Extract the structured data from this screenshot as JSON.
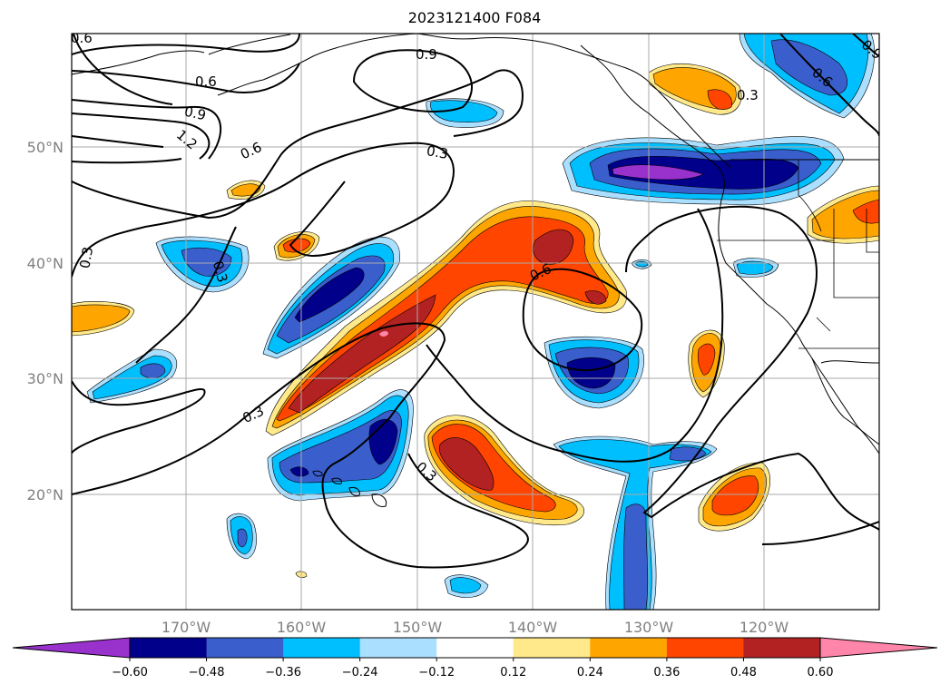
{
  "title": "2023121400 F084",
  "lon_labels": [
    "170°W",
    "160°W",
    "150°W",
    "140°W",
    "130°W",
    "120°W"
  ],
  "lat_labels": [
    "50°N",
    "40°N",
    "30°N",
    "20°N"
  ],
  "colorbar": {
    "ticks": [
      "−0.60",
      "−0.48",
      "−0.36",
      "−0.24",
      "−0.12",
      "0.12",
      "0.24",
      "0.36",
      "0.48",
      "0.60"
    ],
    "colors": [
      "#9932cc",
      "#00008b",
      "#3a5fcd",
      "#00bfff",
      "#aadfff",
      "#ffffff",
      "#ffe98a",
      "#ffa500",
      "#ff4500",
      "#b22222",
      "#ff85aa"
    ]
  },
  "contour_labels": [
    "0.6",
    "0.6",
    "0.9",
    "0.9",
    "1.2",
    "0.6",
    "0.3",
    "0.3",
    "0.3",
    "0.6",
    "0.3",
    "0.3",
    "0.3",
    "0.6",
    "0.9"
  ]
}
